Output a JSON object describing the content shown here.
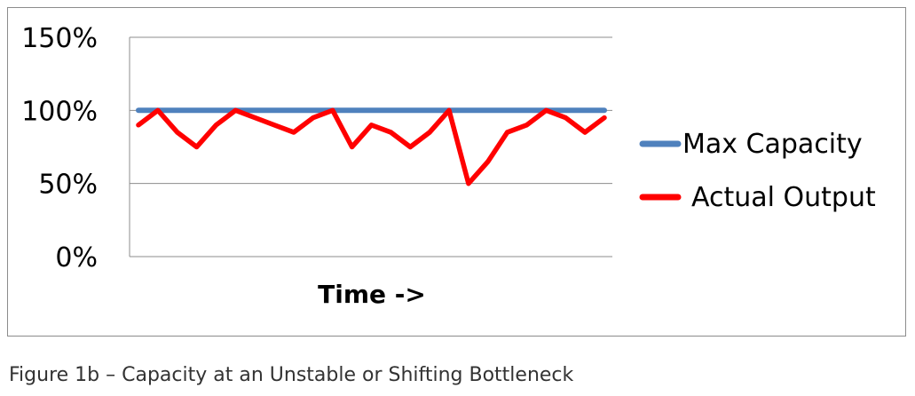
{
  "chart_data": {
    "type": "line",
    "title": "",
    "xlabel": "Time ->",
    "ylabel": "",
    "ylim": [
      0,
      150
    ],
    "y_ticks": [
      0,
      50,
      100,
      150
    ],
    "y_tick_labels": [
      "0%",
      "50%",
      "100%",
      "150%"
    ],
    "grid": true,
    "legend_position": "right",
    "series": [
      {
        "name": "Max Capacity",
        "color": "#4f81bd",
        "values": [
          100,
          100,
          100,
          100,
          100,
          100,
          100,
          100,
          100,
          100,
          100,
          100,
          100,
          100,
          100,
          100,
          100,
          100,
          100,
          100,
          100,
          100,
          100,
          100,
          100
        ]
      },
      {
        "name": "Actual Output",
        "color": "#ff0000",
        "values": [
          90,
          100,
          85,
          75,
          90,
          100,
          95,
          90,
          85,
          95,
          100,
          75,
          90,
          85,
          75,
          85,
          100,
          50,
          65,
          85,
          90,
          100,
          95,
          85,
          95
        ]
      }
    ]
  },
  "caption": "Figure 1b – Capacity at an Unstable or Shifting Bottleneck"
}
